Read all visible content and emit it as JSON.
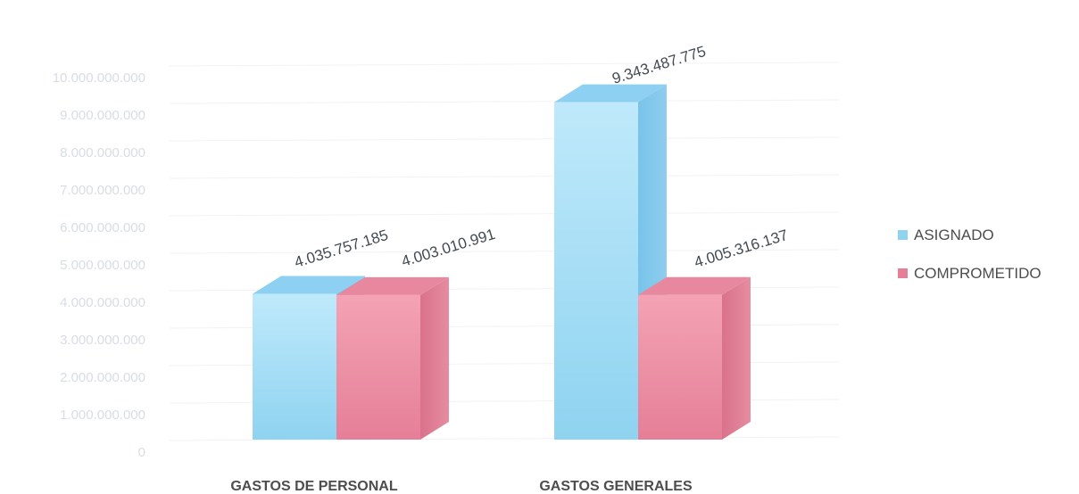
{
  "chart_data": {
    "type": "bar",
    "categories": [
      "GASTOS DE PERSONAL",
      "GASTOS GENERALES"
    ],
    "series": [
      {
        "name": "ASIGNADO",
        "values": [
          4035757185,
          9343487775
        ],
        "labels": [
          "4.035.757.185",
          "9.343.487.775"
        ],
        "color": "#a8dff5"
      },
      {
        "name": "COMPROMETIDO",
        "values": [
          4003010991,
          4005316137
        ],
        "labels": [
          "",
          "4.005.316.137"
        ],
        "color": "#ec8fa3"
      }
    ],
    "y_ticks": [
      "0",
      "1.000.000.000",
      "2.000.000.000",
      "3.000.000.000",
      "4.000.000.000",
      "5.000.000.000",
      "6.000.000.000",
      "7.000.000.000",
      "8.000.000.000",
      "9.000.000.000",
      "10.000.000.000"
    ],
    "ylim": [
      0,
      10000000000
    ],
    "grid": true,
    "legend_position": "right",
    "three_d": true
  },
  "extra_labels": {
    "personal_comprometido_label": "4.003.010.991"
  }
}
